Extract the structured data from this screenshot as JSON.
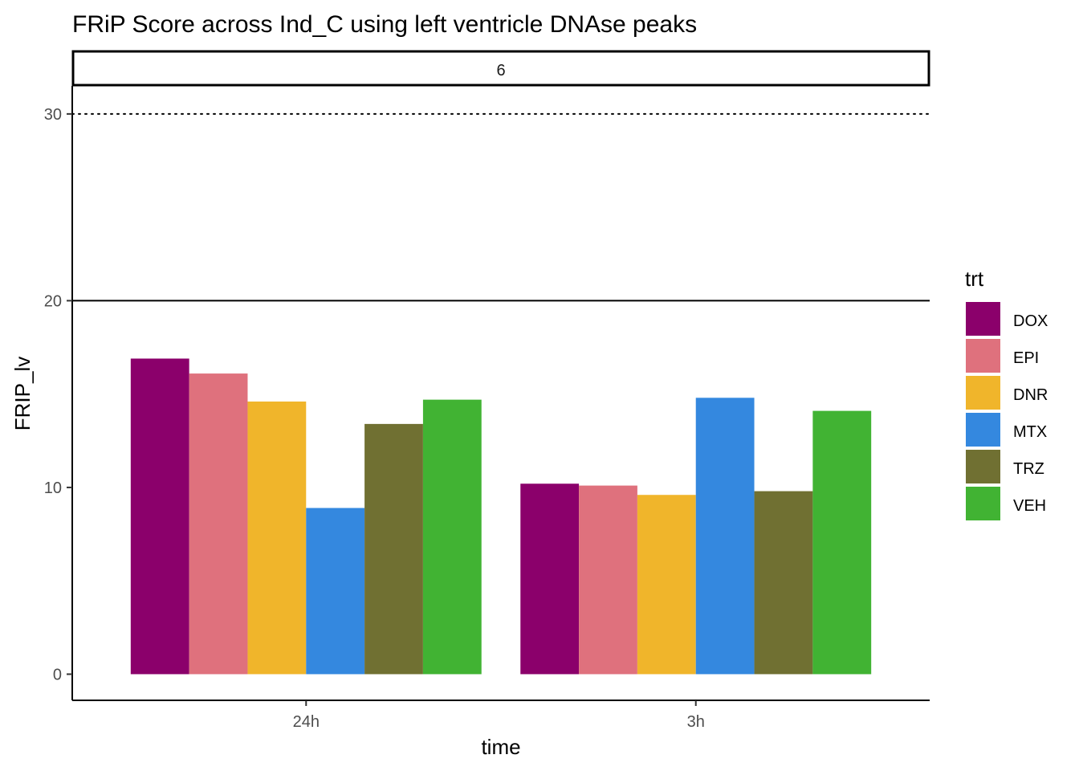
{
  "chart_data": {
    "type": "bar",
    "title": "FRiP Score across Ind_C using left ventricle DNAse peaks",
    "facet_label": "6",
    "xlabel": "time",
    "ylabel": "FRIP_lv",
    "ylim": [
      -1.4,
      31.5
    ],
    "yticks": [
      0,
      10,
      20,
      30
    ],
    "categories": [
      "24h",
      "3h"
    ],
    "reference_lines": [
      {
        "y": 20,
        "style": "solid"
      },
      {
        "y": 30,
        "style": "dotted"
      }
    ],
    "legend": {
      "title": "trt",
      "placement": "right"
    },
    "grid": false,
    "series": [
      {
        "name": "DOX",
        "color": "#8B006B",
        "values": [
          16.9,
          10.2
        ]
      },
      {
        "name": "EPI",
        "color": "#DF717D",
        "values": [
          16.1,
          10.1
        ]
      },
      {
        "name": "DNR",
        "color": "#F0B52B",
        "values": [
          14.6,
          9.6
        ]
      },
      {
        "name": "MTX",
        "color": "#3488DF",
        "values": [
          8.9,
          14.8
        ]
      },
      {
        "name": "TRZ",
        "color": "#707032",
        "values": [
          13.4,
          9.8
        ]
      },
      {
        "name": "VEH",
        "color": "#41B333",
        "values": [
          14.7,
          14.1
        ]
      }
    ]
  }
}
